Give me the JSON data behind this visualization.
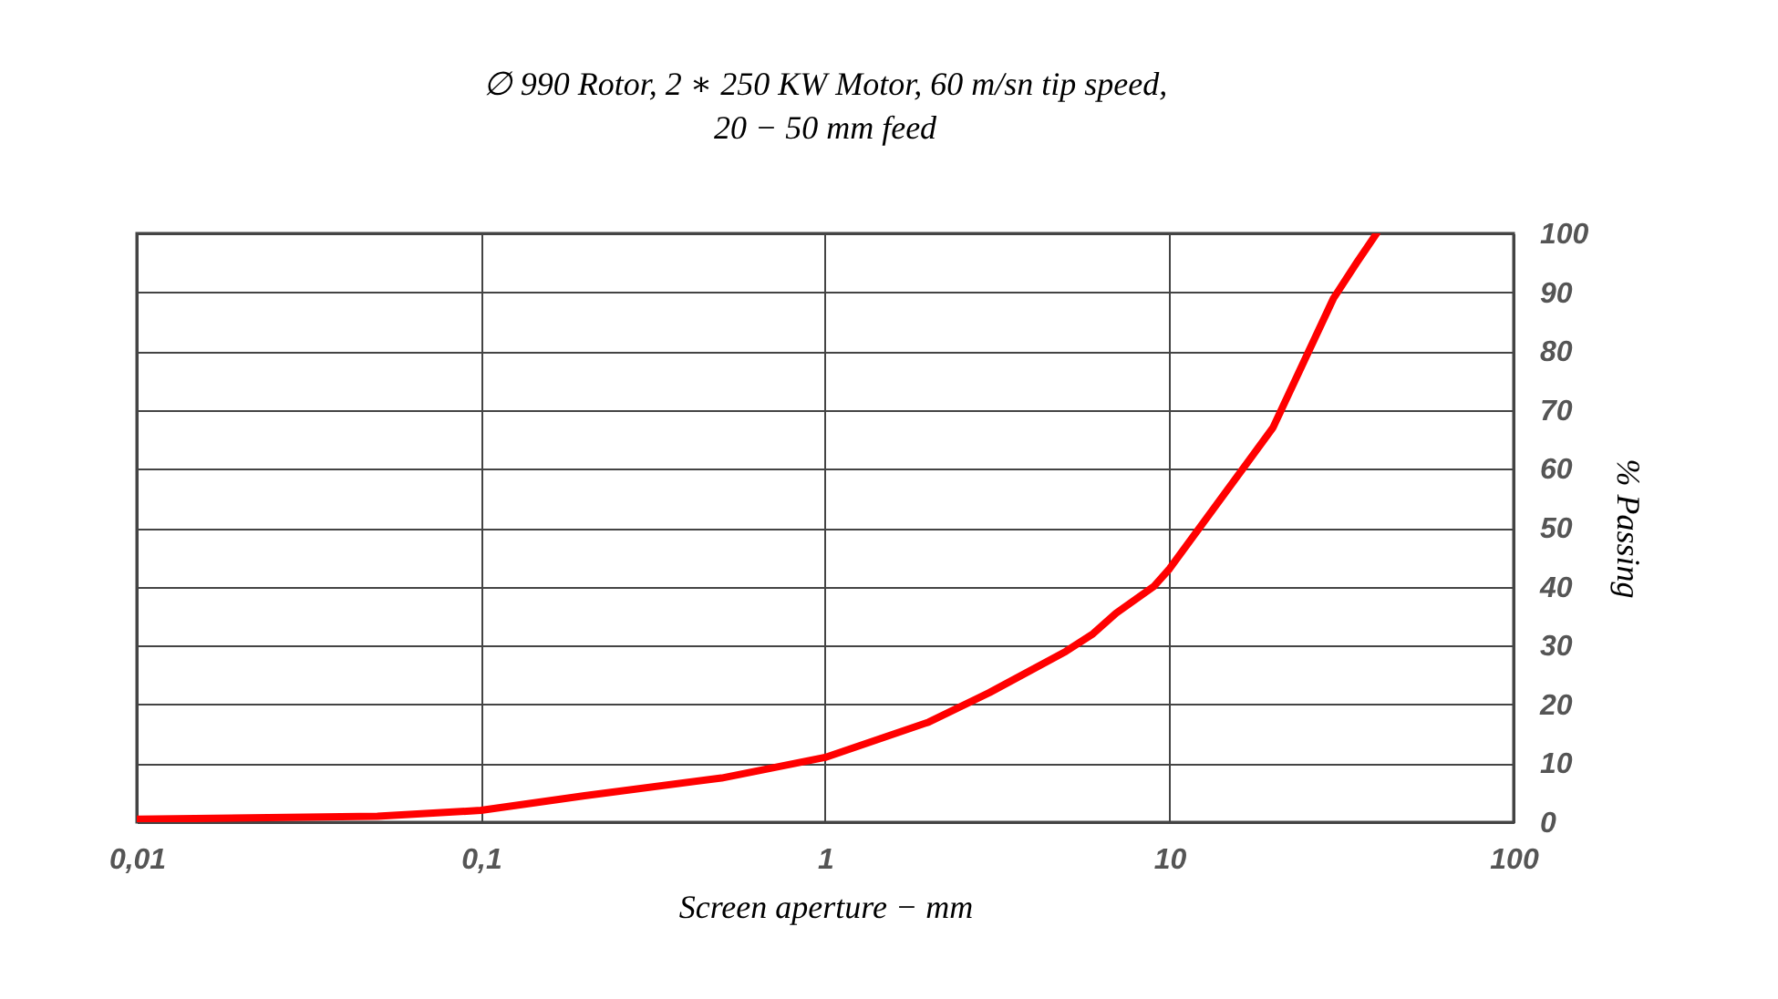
{
  "chart_data": {
    "type": "line",
    "title": "∅ 990 Rotor, 2 ∗ 250 KW Motor, 60 m/sn tip speed,\n20 − 50 mm feed",
    "xlabel": "Screen aperture − mm",
    "ylabel": "% Passing",
    "x": [
      0.01,
      0.05,
      0.1,
      0.2,
      0.5,
      1,
      2,
      3,
      5,
      6,
      7,
      9,
      10,
      20,
      30,
      35,
      40
    ],
    "series": [
      {
        "color": "#ff0000",
        "values": [
          0.5,
          1,
          2,
          4.5,
          7.5,
          11,
          17,
          22,
          29,
          32,
          35.5,
          40,
          43,
          67,
          89,
          95,
          100
        ]
      }
    ],
    "log": "x",
    "xlim": [
      0.01,
      100
    ],
    "ylim": [
      0,
      100
    ],
    "xticks": [
      {
        "value": 0.01,
        "label": "0,01"
      },
      {
        "value": 0.1,
        "label": "0,1"
      },
      1,
      10,
      100
    ],
    "yticks": [
      0,
      10,
      20,
      30,
      40,
      50,
      60,
      70,
      80,
      90,
      100
    ],
    "grid": true,
    "legend": false,
    "marker": "none",
    "line_style": "solid"
  }
}
